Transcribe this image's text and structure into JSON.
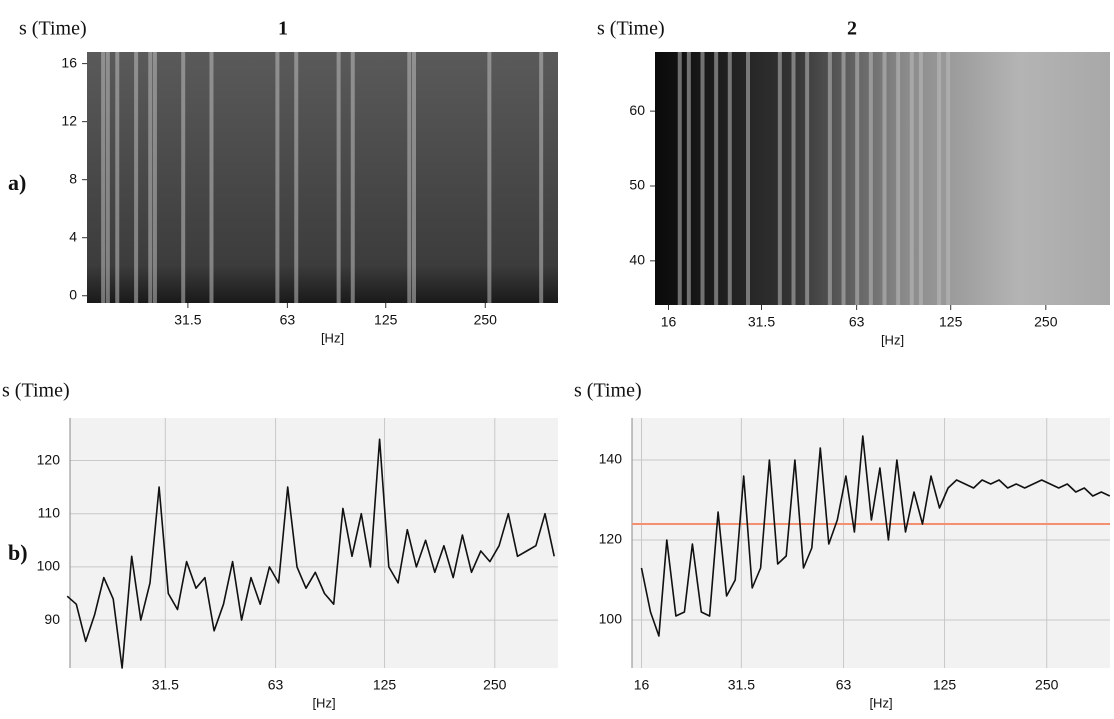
{
  "row_labels": [
    "a)",
    "b)"
  ],
  "chart_data": [
    {
      "type": "spectrogram",
      "title": "1",
      "y_label": "s (Time)",
      "x_label": "[Hz]",
      "log_x": true,
      "xlim": [
        15.6,
        415
      ],
      "ylim": [
        -0.5,
        16.8
      ],
      "xticks": [
        31.5,
        63,
        125,
        250
      ],
      "yticks": [
        0,
        4,
        8,
        12,
        16
      ]
    },
    {
      "type": "spectrogram",
      "title": "2",
      "y_label": "s (Time)",
      "x_label": "[Hz]",
      "log_x": true,
      "xlim": [
        14.5,
        399
      ],
      "ylim": [
        34.1,
        67.9
      ],
      "xticks": [
        16,
        31.5,
        63,
        125,
        250
      ],
      "yticks": [
        40,
        50,
        60
      ]
    },
    {
      "type": "line",
      "y_label": "s (Time)",
      "x_label": "[Hz]",
      "log_x": true,
      "grid": true,
      "color": "#111111",
      "xlim": [
        17.3,
        372
      ],
      "ylim": [
        81,
        128
      ],
      "xticks": [
        31.5,
        63,
        125,
        250
      ],
      "yticks": [
        90,
        100,
        110,
        120
      ],
      "x": [
        17.0,
        18.0,
        19.1,
        20.2,
        21.4,
        22.7,
        24.0,
        25.5,
        27.0,
        28.6,
        30.3,
        32.1,
        34.0,
        36.0,
        38.2,
        40.4,
        42.8,
        45.4,
        48.1,
        50.9,
        54.0,
        57.2,
        60.6,
        64.2,
        68.0,
        72.1,
        76.3,
        80.9,
        85.7,
        90.8,
        96.2,
        101.9,
        108.0,
        114.4,
        121.2,
        128.4,
        136.1,
        144.2,
        152.7,
        161.8,
        171.5,
        181.6,
        192.5,
        203.9,
        216.0,
        228.9,
        242.5,
        256.9,
        272.2,
        288.4,
        305.5,
        323.7,
        342.9,
        363.3
      ],
      "values": [
        94.5,
        93,
        86,
        91,
        98,
        94,
        81,
        102,
        90,
        97,
        115,
        95,
        92,
        101,
        96,
        98,
        88,
        93,
        101,
        90,
        98,
        93,
        100,
        97,
        115,
        100,
        96,
        99,
        95,
        93,
        111,
        102,
        110,
        100,
        124,
        100,
        97,
        107,
        100,
        105,
        99,
        104,
        98,
        106,
        99,
        103,
        101,
        104,
        110,
        102,
        103,
        104,
        110,
        102
      ]
    },
    {
      "type": "line",
      "y_label": "s (Time)",
      "x_label": "[Hz]",
      "log_x": true,
      "grid": true,
      "color": "#111111",
      "xlim": [
        15,
        384
      ],
      "ylim": [
        88,
        150.5
      ],
      "xticks": [
        16,
        31.5,
        63,
        125,
        250
      ],
      "yticks": [
        100,
        120,
        140
      ],
      "reference_line": {
        "value": 124,
        "color": "#f4906f"
      },
      "x": [
        16.0,
        17.0,
        18.0,
        19.0,
        20.2,
        21.4,
        22.6,
        24.0,
        25.4,
        26.9,
        28.5,
        30.2,
        32.0,
        33.9,
        35.9,
        38.1,
        40.3,
        42.7,
        45.3,
        48.0,
        50.8,
        53.8,
        57.0,
        60.4,
        64.0,
        67.8,
        71.8,
        76.1,
        80.6,
        85.4,
        90.5,
        95.9,
        101.6,
        107.6,
        114.0,
        120.8,
        128.0,
        135.6,
        143.7,
        152.2,
        161.3,
        170.9,
        181.0,
        191.8,
        203.2,
        215.3,
        228.1,
        241.6,
        256.0,
        271.2,
        287.4,
        304.4,
        322.5,
        341.7,
        362.0,
        383.6
      ],
      "values": [
        113,
        102,
        96,
        120,
        101,
        102,
        119,
        102,
        101,
        127,
        106,
        110,
        136,
        108,
        113,
        140,
        114,
        116,
        140,
        113,
        118,
        143,
        119,
        125,
        136,
        122,
        146,
        125,
        138,
        120,
        140,
        122,
        132,
        124,
        136,
        128,
        133,
        135,
        134,
        133,
        135,
        134,
        135,
        133,
        134,
        133,
        134,
        135,
        134,
        133,
        134,
        132,
        133,
        131,
        132,
        131
      ]
    }
  ]
}
